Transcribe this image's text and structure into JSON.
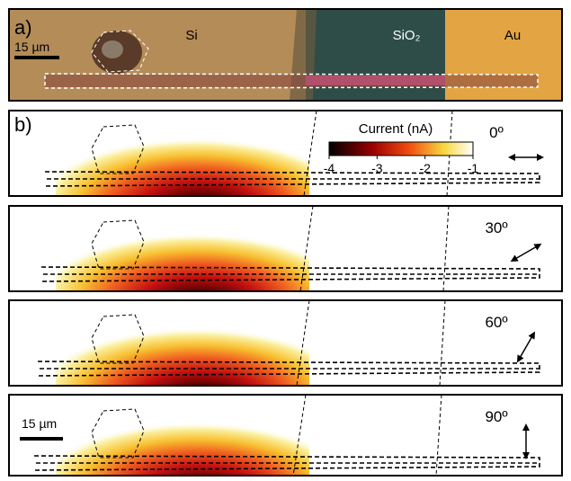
{
  "panel_a": {
    "label": "a)",
    "scale_bar": "15 µm",
    "regions": [
      "Si",
      "SiO₂",
      "Au"
    ]
  },
  "panel_b": {
    "label": "b)",
    "scale_bar": "15 µm",
    "colorbar": {
      "title": "Current (nA)",
      "ticks": [
        -4,
        -3,
        -2,
        -1
      ]
    },
    "maps": [
      {
        "angle": "0º"
      },
      {
        "angle": "30º"
      },
      {
        "angle": "60º"
      },
      {
        "angle": "90º"
      }
    ]
  }
}
